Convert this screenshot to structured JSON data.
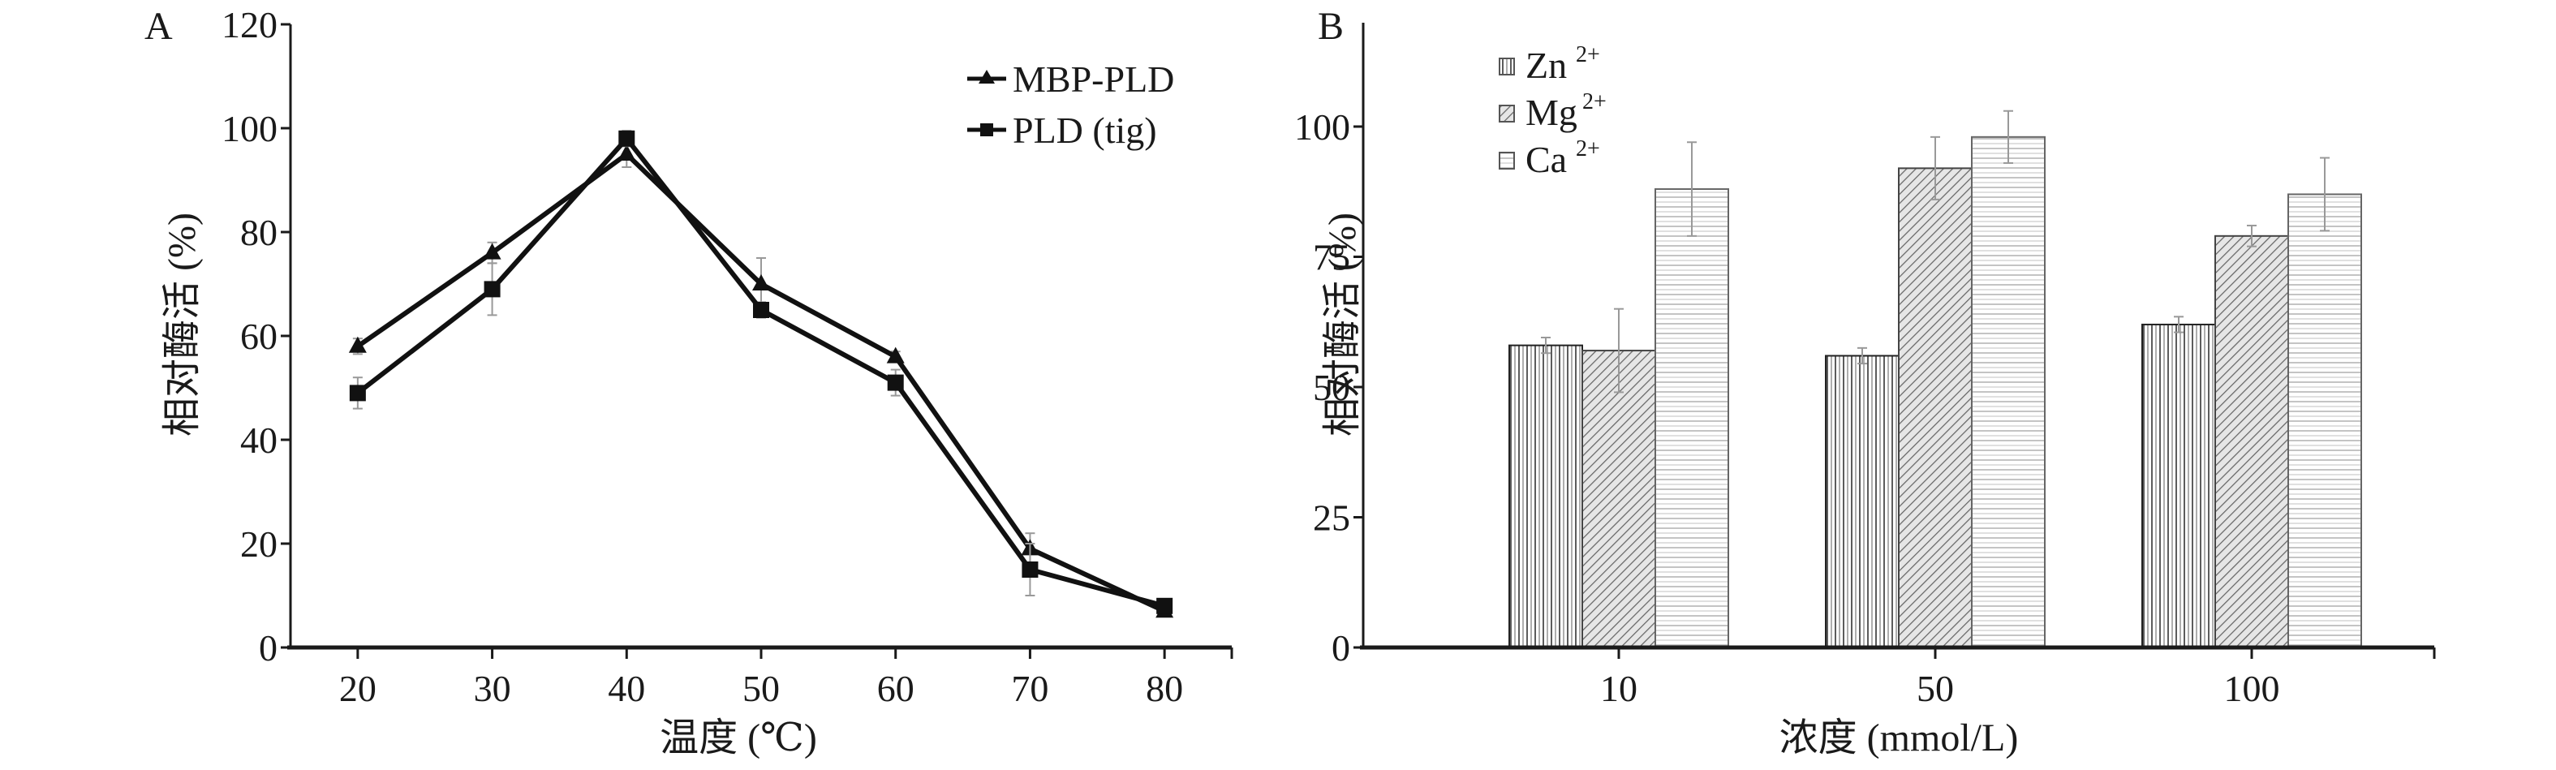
{
  "chart_data": [
    {
      "panel_label": "A",
      "type": "line",
      "title": "",
      "xlabel": "温度 (℃)",
      "ylabel": "相对酶活 (%)",
      "x": [
        20,
        30,
        40,
        50,
        60,
        70,
        80
      ],
      "x_ticks": [
        "20",
        "30",
        "40",
        "50",
        "60",
        "70",
        "80"
      ],
      "xlim": [
        15,
        85
      ],
      "ylim": [
        0,
        120
      ],
      "y_ticks": [
        "0",
        "20",
        "40",
        "60",
        "80",
        "100",
        "120"
      ],
      "y_tick_values": [
        0,
        20,
        40,
        60,
        80,
        100,
        120
      ],
      "grid": false,
      "legend_position": "top-right",
      "series": [
        {
          "name": "MBP-PLD",
          "marker": "triangle",
          "values": [
            58,
            76,
            95,
            70,
            56,
            19,
            7
          ],
          "errors": [
            1.5,
            2,
            2.5,
            5,
            1,
            3,
            1
          ]
        },
        {
          "name": "PLD (tig)",
          "marker": "square",
          "values": [
            49,
            69,
            98,
            65,
            51,
            15,
            8
          ],
          "errors": [
            3,
            5,
            1.5,
            1.5,
            2.5,
            5,
            1
          ]
        }
      ]
    },
    {
      "panel_label": "B",
      "type": "bar",
      "title": "",
      "xlabel": "浓度 (mmol/L)",
      "ylabel": "相对酶活 (%)",
      "categories": [
        "10",
        "50",
        "100"
      ],
      "ylim": [
        0,
        118
      ],
      "y_ticks": [
        "0",
        "25",
        "50",
        "75",
        "100"
      ],
      "y_tick_values": [
        0,
        25,
        50,
        75,
        100
      ],
      "grid": false,
      "legend_position": "top-left",
      "series": [
        {
          "name": "Zn",
          "superscript": "2+",
          "pattern": "vertical-lines",
          "values": [
            58,
            56,
            62
          ],
          "errors": [
            1.5,
            1.5,
            1.5
          ]
        },
        {
          "name": "Mg",
          "superscript": "2+",
          "pattern": "diagonal-lines",
          "values": [
            57,
            92,
            79
          ],
          "errors": [
            8,
            6,
            2
          ]
        },
        {
          "name": "Ca",
          "superscript": "2+",
          "pattern": "horizontal-lines",
          "values": [
            88,
            98,
            87
          ],
          "errors": [
            9,
            5,
            7
          ]
        }
      ]
    }
  ]
}
